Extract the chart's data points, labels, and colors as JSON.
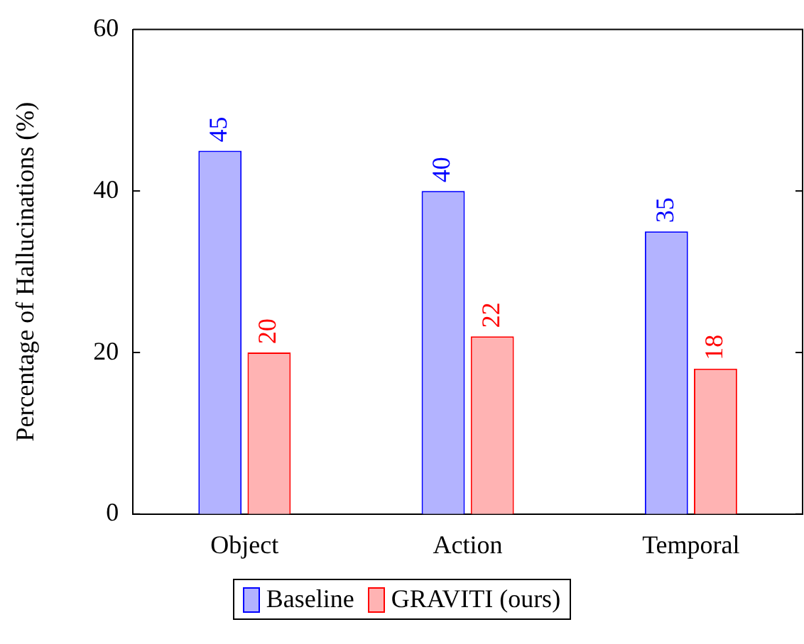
{
  "chart_data": {
    "type": "bar",
    "ylabel": "Percentage of Hallucinations (%)",
    "categories": [
      "Object",
      "Action",
      "Temporal"
    ],
    "series": [
      {
        "name": "Baseline",
        "color": "#b3b3ff",
        "values": [
          45,
          40,
          35
        ]
      },
      {
        "name": "GRAVITI (ours)",
        "color": "#ffb3b3",
        "values": [
          20,
          22,
          18
        ]
      }
    ],
    "ylim": [
      0,
      60
    ],
    "yticks": [
      0,
      20,
      40,
      60
    ],
    "grid": false,
    "legend": "bottom",
    "data_labels": true
  }
}
